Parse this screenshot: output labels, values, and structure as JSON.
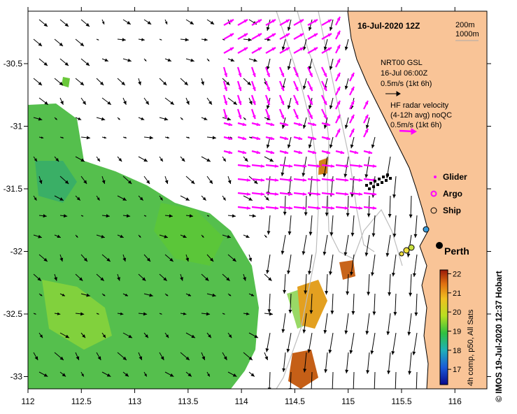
{
  "map": {
    "date_label": "16-Jul-2020 12Z",
    "bathy_labels": [
      "200m",
      "1000m"
    ],
    "x_ticks": [
      112,
      112.5,
      113,
      113.5,
      114,
      114.5,
      115,
      115.5,
      116
    ],
    "y_ticks": [
      -30.5,
      -31,
      -31.5,
      -32,
      -32.5,
      -33
    ],
    "city_label": "Perth",
    "colors": {
      "land": "#f9c497",
      "current_vector": "#ff00ff",
      "water": "#ffffff"
    }
  },
  "legend": {
    "model_title": "NRT00 GSL",
    "model_time": "16-Jul 06:00Z",
    "model_scale": "0.5m/s (1kt 6h)",
    "radar_title": "HF radar velocity",
    "radar_sub": "(4-12h avg) noQC",
    "radar_scale": "0.5m/s (1kt 6h)",
    "markers": [
      {
        "label": "Glider",
        "symbol": "dot-icon"
      },
      {
        "label": "Argo",
        "symbol": "ring-icon"
      },
      {
        "label": "Ship",
        "symbol": "circle-icon"
      }
    ]
  },
  "colorbar": {
    "ticks": [
      17,
      18,
      19,
      20,
      21,
      22
    ],
    "range": [
      16.2,
      22.2
    ],
    "label": "4h comp, p50, All Sats"
  },
  "credit": "© IMOS 19-Jul-2020 12:37 Hobart"
}
